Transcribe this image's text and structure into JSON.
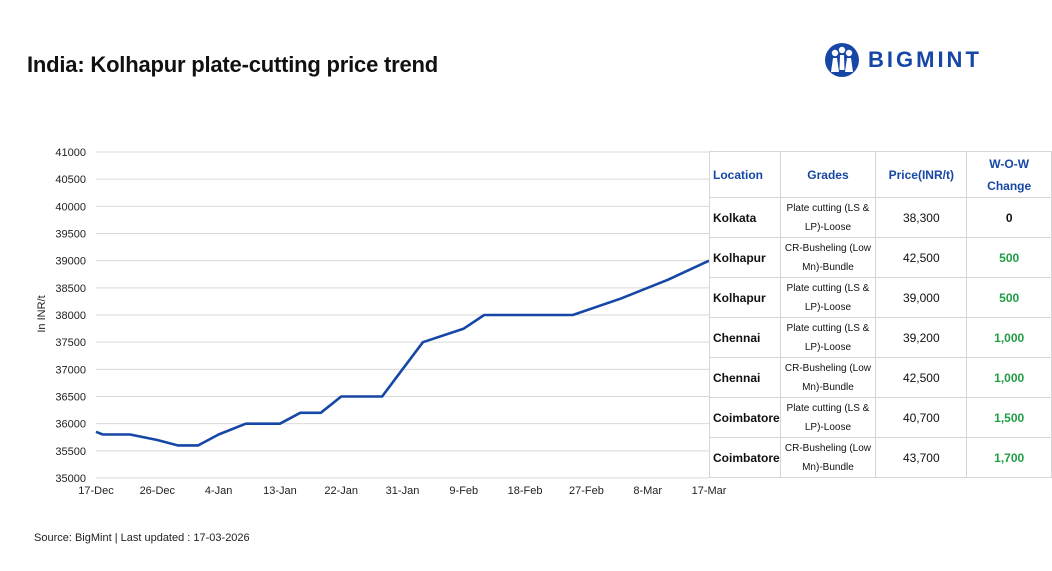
{
  "header": {
    "title": "India: Kolhapur plate-cutting price trend",
    "brand": "BIGMINT",
    "brand_color": "#1747a6"
  },
  "chart_data": {
    "type": "line",
    "title": "India: Kolhapur plate-cutting price trend",
    "ylabel": "In INR/t",
    "xlabel": "",
    "ylim": [
      35000,
      41000
    ],
    "y_ticks": [
      "41000",
      "40500",
      "40000",
      "39500",
      "39000",
      "38500",
      "38000",
      "37500",
      "37000",
      "36500",
      "36000",
      "35500",
      "35000"
    ],
    "x_tick_labels": [
      "17-Dec",
      "26-Dec",
      "4-Jan",
      "13-Jan",
      "22-Jan",
      "31-Jan",
      "9-Feb",
      "18-Feb",
      "27-Feb",
      "8-Mar",
      "17-Mar"
    ],
    "x_tick_days": [
      0,
      9,
      18,
      27,
      36,
      45,
      54,
      63,
      72,
      81,
      90
    ],
    "grid": true,
    "line_color": "#1747a6",
    "series": [
      {
        "name": "Kolhapur plate-cutting",
        "x_days": [
          0,
          1,
          5,
          9,
          12,
          15,
          18,
          22,
          27,
          30,
          33,
          36,
          42,
          45,
          48,
          54,
          57,
          60,
          63,
          70,
          77,
          84,
          90
        ],
        "values": [
          35850,
          35800,
          35800,
          35700,
          35600,
          35600,
          35800,
          36000,
          36000,
          36200,
          36200,
          36500,
          36500,
          37000,
          37500,
          37750,
          38000,
          38000,
          38000,
          38000,
          38300,
          38650,
          39000
        ]
      }
    ]
  },
  "table": {
    "headers": {
      "location": "Location",
      "grades": "Grades",
      "price": "Price(INR/t)",
      "change_line1": "W-O-W",
      "change_line2": "Change"
    },
    "rows": [
      {
        "location": "Kolkata",
        "grade_line1": "Plate cutting (LS &",
        "grade_line2": "LP)-Loose",
        "price": "38,300",
        "change": "0",
        "change_color": "#111111"
      },
      {
        "location": "Kolhapur",
        "grade_line1": "CR-Busheling (Low",
        "grade_line2": "Mn)-Bundle",
        "price": "42,500",
        "change": "500",
        "change_color": "#1f9e45"
      },
      {
        "location": "Kolhapur",
        "grade_line1": "Plate cutting (LS &",
        "grade_line2": "LP)-Loose",
        "price": "39,000",
        "change": "500",
        "change_color": "#1f9e45"
      },
      {
        "location": "Chennai",
        "grade_line1": "Plate cutting (LS &",
        "grade_line2": "LP)-Loose",
        "price": "39,200",
        "change": "1,000",
        "change_color": "#1f9e45"
      },
      {
        "location": "Chennai",
        "grade_line1": "CR-Busheling (Low",
        "grade_line2": "Mn)-Bundle",
        "price": "42,500",
        "change": "1,000",
        "change_color": "#1f9e45"
      },
      {
        "location": "Coimbatore",
        "grade_line1": "Plate cutting (LS &",
        "grade_line2": "LP)-Loose",
        "price": "40,700",
        "change": "1,500",
        "change_color": "#1f9e45"
      },
      {
        "location": "Coimbatore",
        "grade_line1": "CR-Busheling (Low",
        "grade_line2": "Mn)-Bundle",
        "price": "43,700",
        "change": "1,700",
        "change_color": "#1f9e45"
      }
    ]
  },
  "footer": {
    "source": "Source: BigMint | Last updated : 17-03-2026"
  }
}
